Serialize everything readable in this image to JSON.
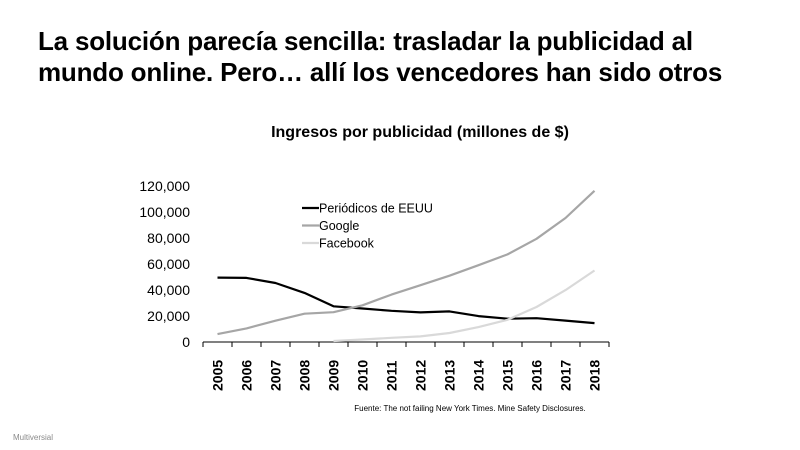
{
  "slide": {
    "title": "La solución parecía sencilla: trasladar la publicidad al mundo online. Pero… allí los vencedores han sido otros",
    "source": "Fuente: The not failing New York Times. Mine Safety Disclosures.",
    "footer": "Multiversial"
  },
  "chart_data": {
    "type": "line",
    "title": "Ingresos por publicidad (millones de $)",
    "x": [
      "2005",
      "2006",
      "2007",
      "2008",
      "2009",
      "2010",
      "2011",
      "2012",
      "2013",
      "2014",
      "2015",
      "2016",
      "2017",
      "2018"
    ],
    "ylim": [
      0,
      120000
    ],
    "yticks": [
      "0",
      "20,000",
      "40,000",
      "60,000",
      "80,000",
      "100,000",
      "120,000"
    ],
    "grid": false,
    "legend": "top-left inside plot",
    "series": [
      {
        "name": "Periódicos de EEUU",
        "color": "#000000",
        "values": [
          49500,
          49300,
          45400,
          37800,
          27500,
          25800,
          24000,
          22800,
          23500,
          19900,
          17900,
          18300,
          16500,
          14500
        ]
      },
      {
        "name": "Google",
        "color": "#a6a6a6",
        "values": [
          6100,
          10500,
          16400,
          21800,
          22900,
          28200,
          36500,
          43700,
          51000,
          59100,
          67400,
          79400,
          95400,
          116300
        ]
      },
      {
        "name": "Facebook",
        "color": "#d9d9d9",
        "values": [
          null,
          null,
          null,
          null,
          800,
          1900,
          3200,
          4300,
          6900,
          11500,
          17100,
          26900,
          39900,
          55000
        ]
      }
    ]
  }
}
